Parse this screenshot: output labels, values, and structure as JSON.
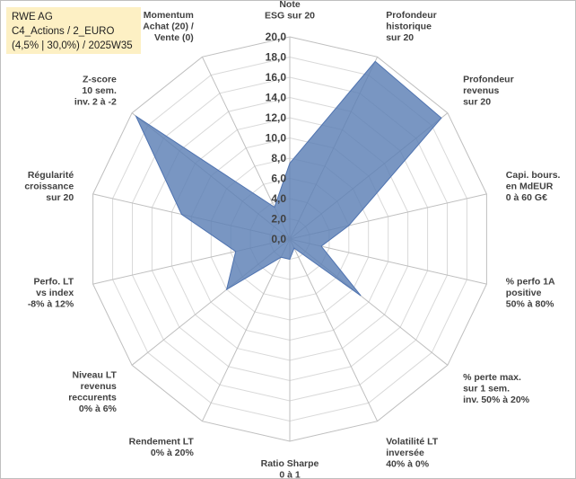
{
  "info": {
    "line1": "RWE AG",
    "line2": "C4_Actions / 2_EURO",
    "line3": "(4,5% | 30,0%) / 2025W35"
  },
  "chart_data": {
    "type": "radar",
    "min": 0,
    "max": 20,
    "ticks": [
      "0,0",
      "2,0",
      "4,0",
      "6,0",
      "8,0",
      "10,0",
      "12,0",
      "14,0",
      "16,0",
      "18,0",
      "20,0"
    ],
    "axes": [
      [
        "Note",
        "ESG sur 20"
      ],
      [
        "Profondeur",
        "historique",
        "sur 20"
      ],
      [
        "Profondeur",
        "revenus",
        "sur 20"
      ],
      [
        "Capi. bours.",
        "en MdEUR",
        "0 à 60 G€"
      ],
      [
        "% perfo 1A",
        "positive",
        "50% à 80%"
      ],
      [
        "% perte max.",
        "sur 1 sem.",
        "inv. 50% à 20%"
      ],
      [
        "Volatilité LT",
        "inversée",
        "40% à 0%"
      ],
      [
        "Ratio Sharpe",
        "0 à 1"
      ],
      [
        "Rendement LT",
        "0% à 20%"
      ],
      [
        "Niveau LT",
        "revenus",
        "reccurents",
        "0% à 6%"
      ],
      [
        "Perfo. LT",
        "vs index",
        "-8% à 12%"
      ],
      [
        "Régularité",
        "croissance",
        "sur 20"
      ],
      [
        "Z-score",
        "10 sem.",
        "inv. 2 à -2"
      ],
      [
        "Momentum",
        "Achat (20) /",
        "Vente (0)"
      ]
    ],
    "series": [
      {
        "values": [
          7.5,
          19.5,
          19.2,
          6.0,
          3.2,
          9.0,
          1.0,
          2.0,
          2.0,
          8.0,
          5.5,
          11.0,
          19.5,
          3.5
        ]
      }
    ],
    "colors": {
      "fill": "#5b7fb4",
      "stroke": "#4f73b0",
      "grid": "#d9d9d9",
      "spoke": "#bfbfbf"
    }
  }
}
